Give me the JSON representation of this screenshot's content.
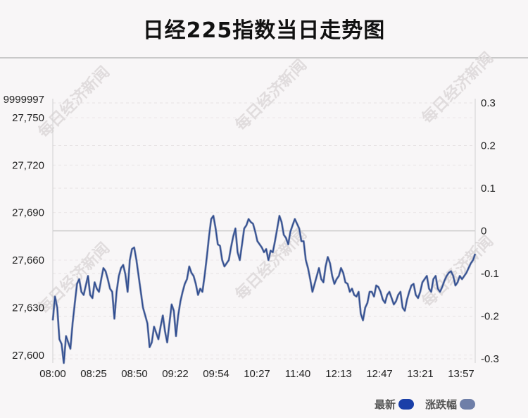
{
  "title": "日经225指数当日走势图",
  "legend": [
    {
      "name": "最新",
      "color": "#1a3fa8"
    },
    {
      "name": "涨跌幅",
      "color": "#6f7fa8"
    }
  ],
  "watermark": "每日经济新闻",
  "chart_data": {
    "type": "line",
    "title": "日经225指数当日走势图",
    "xlabel": "",
    "ylabel": "",
    "x_ticks": [
      "08:00",
      "08:25",
      "08:50",
      "09:22",
      "09:54",
      "10:27",
      "11:40",
      "12:13",
      "12:47",
      "13:21",
      "13:57"
    ],
    "y_ticks_left": [
      "27,600",
      "27,630",
      "27,660",
      "27,690",
      "27,720",
      "27,750"
    ],
    "y_ticks_left_top_partial": "9999997",
    "y_ticks_right": [
      "0.3",
      "0.2",
      "0.1",
      "0",
      "-0.1",
      "-0.2",
      "-0.3"
    ],
    "ylim_left": [
      27595,
      27762
    ],
    "ylim_right": [
      -0.31,
      0.31
    ],
    "grid": true,
    "legend_position": "bottom-right",
    "series": [
      {
        "name": "最新",
        "color": "#2b4a8f",
        "x_index": [
          0,
          2,
          4,
          6,
          8,
          10,
          12,
          14,
          16,
          18,
          20,
          22,
          24,
          26,
          28,
          30,
          32,
          34,
          36,
          38,
          40,
          42,
          44,
          46,
          48,
          50,
          52,
          54,
          56,
          58,
          60,
          62,
          64,
          66,
          68,
          70,
          72,
          74,
          76,
          78,
          80,
          82,
          84,
          86,
          88,
          90,
          92,
          94,
          96,
          98,
          100
        ],
        "values": [
          27622,
          27637,
          27610,
          27595,
          27612,
          27604,
          27633,
          27648,
          27638,
          27650,
          27636,
          27646,
          27640,
          27655,
          27648,
          27642,
          27623,
          27650,
          27657,
          27640,
          27667,
          27668,
          27650,
          27630,
          27620,
          27605,
          27618,
          27610,
          27625,
          27608,
          27632,
          27612,
          27634,
          27645,
          27656,
          27650,
          27638,
          27640,
          27662,
          27686,
          27680,
          27669,
          27656,
          27660,
          27675,
          27665,
          27680,
          27686,
          27683,
          27672,
          27665
        ]
      }
    ],
    "series_full": [
      27622,
      27637,
      27630,
      27610,
      27607,
      27595,
      27612,
      27608,
      27604,
      27620,
      27633,
      27645,
      27648,
      27640,
      27638,
      27644,
      27650,
      27638,
      27636,
      27646,
      27642,
      27640,
      27648,
      27655,
      27653,
      27648,
      27642,
      27640,
      27623,
      27640,
      27650,
      27655,
      27657,
      27651,
      27640,
      27660,
      27667,
      27668,
      27660,
      27650,
      27640,
      27630,
      27625,
      27620,
      27605,
      27608,
      27618,
      27614,
      27610,
      27618,
      27625,
      27615,
      27608,
      27620,
      27632,
      27628,
      27612,
      27625,
      27634,
      27640,
      27645,
      27648,
      27656,
      27652,
      27650,
      27645,
      27638,
      27642,
      27640,
      27650,
      27662,
      27675,
      27686,
      27688,
      27680,
      27670,
      27669,
      27660,
      27656,
      27658,
      27660,
      27668,
      27675,
      27680,
      27665,
      27660,
      27670,
      27680,
      27682,
      27686,
      27684,
      27683,
      27678,
      27672,
      27670,
      27668,
      27665,
      27667,
      27660,
      27666,
      27665,
      27672,
      27680,
      27688,
      27684,
      27676,
      27674,
      27670,
      27678,
      27682,
      27686,
      27683,
      27680,
      27672,
      27672,
      27660,
      27655,
      27648,
      27640,
      27645,
      27650,
      27655,
      27648,
      27646,
      27656,
      27662,
      27658,
      27650,
      27645,
      27648,
      27650,
      27655,
      27652,
      27646,
      27645,
      27640,
      27642,
      27638,
      27637,
      27640,
      27626,
      27622,
      27630,
      27633,
      27640,
      27640,
      27637,
      27644,
      27643,
      27640,
      27635,
      27633,
      27638,
      27640,
      27636,
      27632,
      27634,
      27638,
      27640,
      27630,
      27628,
      27635,
      27640,
      27644,
      27645,
      27638,
      27636,
      27640,
      27646,
      27648,
      27650,
      27642,
      27640,
      27648,
      27650,
      27642,
      27640,
      27643,
      27647,
      27650,
      27652,
      27653,
      27650,
      27644,
      27646,
      27650,
      27648,
      27650,
      27652,
      27655,
      27658,
      27660,
      27664
    ]
  }
}
